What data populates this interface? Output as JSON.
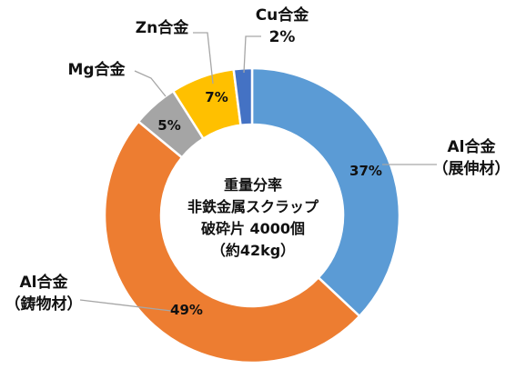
{
  "chart_data": {
    "type": "pie",
    "style": "donut",
    "center_text": [
      "重量分率",
      "非鉄金属スクラップ",
      "破砕片 4000個",
      "（約42kg）"
    ],
    "slices": [
      {
        "category": [
          "Al合金",
          "（展伸材）"
        ],
        "value": 37,
        "value_label": "37%",
        "color": "#5b9bd5"
      },
      {
        "category": [
          "Al合金",
          "（鋳物材）"
        ],
        "value": 49,
        "value_label": "49%",
        "color": "#ed7d31"
      },
      {
        "category": [
          "Mg合金"
        ],
        "value": 5,
        "value_label": "5%",
        "color": "#a5a5a5"
      },
      {
        "category": [
          "Zn合金"
        ],
        "value": 7,
        "value_label": "7%",
        "color": "#ffc000"
      },
      {
        "category": [
          "Cu合金"
        ],
        "value": 2,
        "value_label": "2%",
        "color": "#4472c4"
      }
    ]
  }
}
